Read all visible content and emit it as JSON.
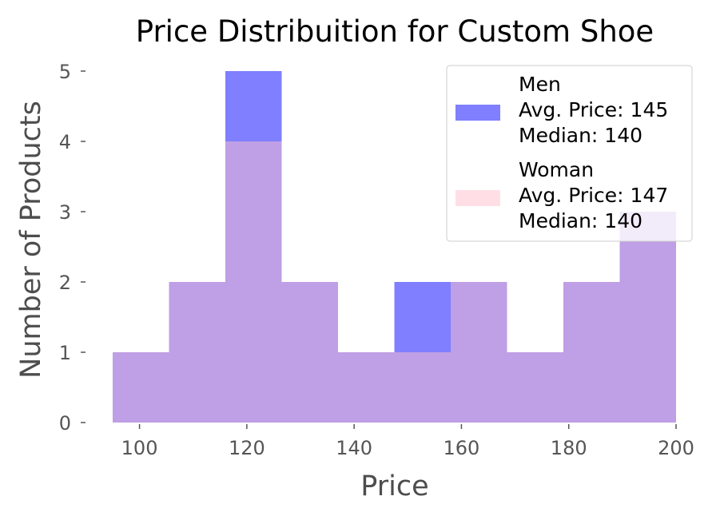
{
  "chart_data": {
    "type": "bar",
    "title": "Price Distribuition for Custom Shoe",
    "xlabel": "Price",
    "ylabel": "Number of Products",
    "xlim": [
      95,
      200
    ],
    "ylim": [
      0,
      5
    ],
    "xticks": [
      100,
      120,
      140,
      160,
      180,
      200
    ],
    "yticks": [
      0,
      1,
      2,
      3,
      4,
      5
    ],
    "bin_edges": [
      95,
      105.5,
      116,
      126.5,
      137,
      147.5,
      158,
      168.5,
      179,
      189.5,
      200
    ],
    "grid": false,
    "legend_position": "top-right",
    "series": [
      {
        "name": "Men",
        "legend_lines": [
          "Men",
          "Avg. Price: 145",
          "Median: 140"
        ],
        "color": "#0000ff",
        "opacity": 0.5,
        "values": [
          1,
          2,
          5,
          2,
          1,
          2,
          2,
          1,
          2,
          3
        ]
      },
      {
        "name": "Woman",
        "legend_lines": [
          "Woman",
          "Avg. Price: 147",
          "Median: 140"
        ],
        "color": "#ffc0cb",
        "opacity": 0.5,
        "values": [
          1,
          2,
          4,
          2,
          1,
          1,
          2,
          1,
          2,
          3
        ]
      }
    ]
  }
}
